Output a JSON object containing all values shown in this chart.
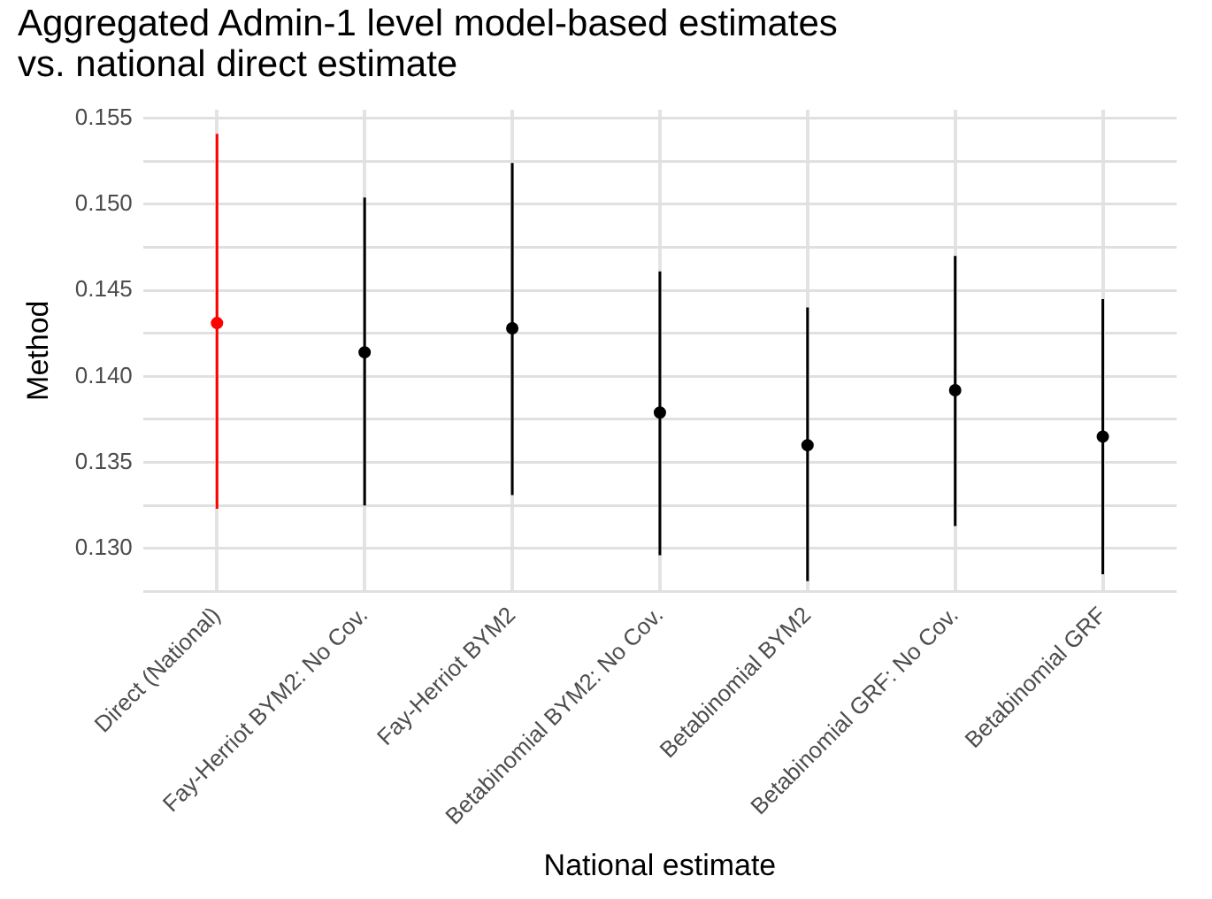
{
  "chart_data": {
    "type": "scatter",
    "title": "Aggregated Admin-1 level model-based estimates\nvs. national direct estimate",
    "xlabel": "National estimate",
    "ylabel": "Method",
    "categories": [
      "Direct (National)",
      "Fay-Herriot BYM2: No Cov.",
      "Fay-Herriot BYM2",
      "Betabinomial BYM2: No Cov.",
      "Betabinomial BYM2",
      "Betabinomial GRF: No Cov.",
      "Betabinomial GRF"
    ],
    "values": [
      0.1431,
      0.1414,
      0.1428,
      0.1379,
      0.136,
      0.1392,
      0.1365
    ],
    "colors": [
      "#ff0000",
      "#000000",
      "#000000",
      "#000000",
      "#000000",
      "#000000",
      "#000000"
    ],
    "errors": [
      [
        0.1323,
        0.1541
      ],
      [
        0.1325,
        0.1504
      ],
      [
        0.1331,
        0.1524
      ],
      [
        0.1296,
        0.1461
      ],
      [
        0.1281,
        0.144
      ],
      [
        0.1313,
        0.147
      ],
      [
        0.1285,
        0.1445
      ]
    ],
    "ylim": [
      0.1275,
      0.1555
    ],
    "yticks": [
      {
        "value": 0.1275,
        "label": null
      },
      {
        "value": 0.13,
        "label": "0.130"
      },
      {
        "value": 0.1325,
        "label": null
      },
      {
        "value": 0.135,
        "label": "0.135"
      },
      {
        "value": 0.1375,
        "label": null
      },
      {
        "value": 0.14,
        "label": "0.140"
      },
      {
        "value": 0.1425,
        "label": null
      },
      {
        "value": 0.145,
        "label": "0.145"
      },
      {
        "value": 0.1475,
        "label": null
      },
      {
        "value": 0.15,
        "label": "0.150"
      },
      {
        "value": 0.1525,
        "label": null
      },
      {
        "value": 0.155,
        "label": "0.155"
      }
    ],
    "grid": true,
    "marker": "circle"
  }
}
